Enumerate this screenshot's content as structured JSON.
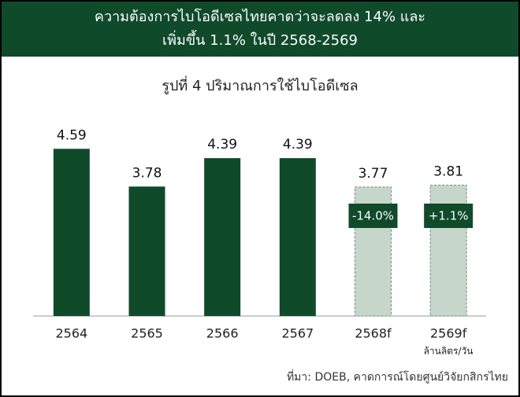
{
  "chart_data": {
    "type": "bar",
    "title": [
      "ความต้องการไบโอดีเซลไทยคาดว่าจะลดลง 14% และ",
      "เพิ่มขึ้น 1.1% ในปี 2568-2569"
    ],
    "subtitle": "รูปที่ 4 ปริมาณการใช้ไบโอดีเซล",
    "categories": [
      "2564",
      "2565",
      "2566",
      "2567",
      "2568f",
      "2569f"
    ],
    "values": [
      4.59,
      3.78,
      4.39,
      4.39,
      3.77,
      3.81
    ],
    "colors": [
      "#0f4a2b",
      "#0f4a2b",
      "#0f4a2b",
      "#0f4a2b",
      "#c6d6ca",
      "#c6d6ca"
    ],
    "annotations": [
      null,
      null,
      null,
      null,
      "-14.0%",
      "+1.1%"
    ],
    "unit": "ล้านลิตร/วัน",
    "source": "ที่มา: DOEB, คาดการณ์โดยศูนย์วิจัยกสิกรไทย",
    "ylim": [
      1,
      5
    ]
  }
}
